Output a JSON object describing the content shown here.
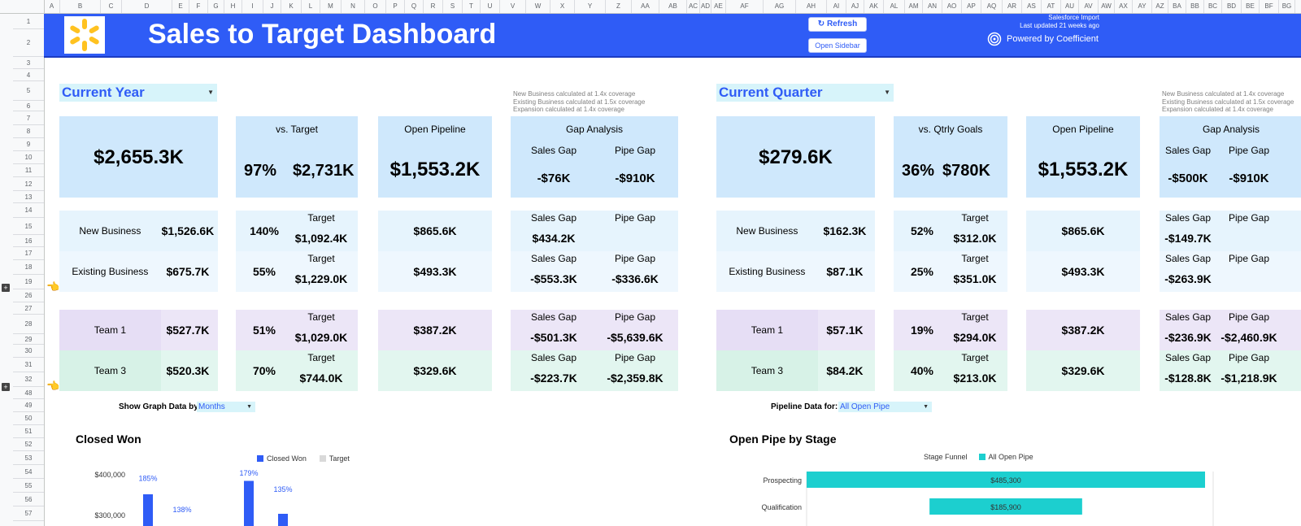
{
  "columns": [
    "A",
    "B",
    "C",
    "D",
    "E",
    "F",
    "G",
    "H",
    "I",
    "J",
    "K",
    "L",
    "M",
    "N",
    "O",
    "P",
    "Q",
    "R",
    "S",
    "T",
    "U",
    "V",
    "W",
    "X",
    "Y",
    "Z",
    "AA",
    "AB",
    "AC",
    "AD",
    "AE",
    "AF",
    "AG",
    "AH",
    "AI",
    "AJ",
    "AK",
    "AL",
    "AM",
    "AN",
    "AO",
    "AP",
    "AQ",
    "AR",
    "AS",
    "AT",
    "AU",
    "AV",
    "AW",
    "AX",
    "AY",
    "AZ",
    "BA",
    "BB",
    "BC",
    "BD",
    "BE",
    "BF",
    "BG"
  ],
  "rows": [
    "1",
    "2",
    "3",
    "4",
    "5",
    "6",
    "7",
    "8",
    "9",
    "10",
    "11",
    "12",
    "13",
    "14",
    "15",
    "16",
    "17",
    "18",
    "19",
    "26",
    "27",
    "28",
    "29",
    "30",
    "31",
    "32",
    "48",
    "49",
    "50",
    "51",
    "52",
    "53",
    "54",
    "55",
    "56",
    "57"
  ],
  "header": {
    "title": "Sales to Target Dashboard",
    "refresh_label": "Refresh",
    "open_sidebar_label": "Open Sidebar",
    "import_source": "Salesforce Import",
    "last_updated": "Last updated 21 weeks ago",
    "powered_by": "Powered by Coefficient"
  },
  "year": {
    "period_label": "Current Year",
    "notes": [
      "New Business calculated at 1.4x coverage",
      "Existing Business calculated at 1.5x coverage",
      "Expansion calculated at 1.4x coverage"
    ],
    "total": "$2,655.3K",
    "vs_label": "vs. Target",
    "vs_pct": "97%",
    "vs_value": "$2,731K",
    "pipeline_label": "Open Pipeline",
    "pipeline_value": "$1,553.2K",
    "gap_label": "Gap Analysis",
    "sales_gap_label": "Sales Gap",
    "pipe_gap_label": "Pipe Gap",
    "sales_gap": "-$76K",
    "pipe_gap": "-$910K",
    "rows": [
      {
        "name": "New Business",
        "value": "$1,526.6K",
        "pct": "140%",
        "target_label": "Target",
        "target": "$1,092.4K",
        "pipe": "$865.6K",
        "sales_gap_label": "Sales Gap",
        "pipe_gap_label": "Pipe Gap",
        "sales_gap": "$434.2K",
        "pipe_gap": ""
      },
      {
        "name": "Existing Business",
        "value": "$675.7K",
        "pct": "55%",
        "target_label": "Target",
        "target": "$1,229.0K",
        "pipe": "$493.3K",
        "sales_gap_label": "Sales Gap",
        "pipe_gap_label": "Pipe Gap",
        "sales_gap": "-$553.3K",
        "pipe_gap": "-$336.6K"
      },
      {
        "name": "Team 1",
        "value": "$527.7K",
        "pct": "51%",
        "target_label": "Target",
        "target": "$1,029.0K",
        "pipe": "$387.2K",
        "sales_gap_label": "Sales Gap",
        "pipe_gap_label": "Pipe Gap",
        "sales_gap": "-$501.3K",
        "pipe_gap": "-$5,639.6K"
      },
      {
        "name": "Team 3",
        "value": "$520.3K",
        "pct": "70%",
        "target_label": "Target",
        "target": "$744.0K",
        "pipe": "$329.6K",
        "sales_gap_label": "Sales Gap",
        "pipe_gap_label": "Pipe Gap",
        "sales_gap": "-$223.7K",
        "pipe_gap": "-$2,359.8K"
      }
    ]
  },
  "quarter": {
    "period_label": "Current Quarter",
    "notes": [
      "New Business calculated at 1.4x coverage",
      "Existing Business calculated at 1.5x coverage",
      "Expansion calculated at 1.4x coverage"
    ],
    "total": "$279.6K",
    "vs_label": "vs. Qtrly Goals",
    "vs_pct": "36%",
    "vs_value": "$780K",
    "pipeline_label": "Open Pipeline",
    "pipeline_value": "$1,553.2K",
    "gap_label": "Gap Analysis",
    "sales_gap_label": "Sales Gap",
    "pipe_gap_label": "Pipe Gap",
    "sales_gap": "-$500K",
    "pipe_gap": "-$910K",
    "rows": [
      {
        "name": "New Business",
        "value": "$162.3K",
        "pct": "52%",
        "target_label": "Target",
        "target": "$312.0K",
        "pipe": "$865.6K",
        "sales_gap_label": "Sales Gap",
        "pipe_gap_label": "Pipe Gap",
        "sales_gap": "-$149.7K",
        "pipe_gap": ""
      },
      {
        "name": "Existing Business",
        "value": "$87.1K",
        "pct": "25%",
        "target_label": "Target",
        "target": "$351.0K",
        "pipe": "$493.3K",
        "sales_gap_label": "Sales Gap",
        "pipe_gap_label": "Pipe Gap",
        "sales_gap": "-$263.9K",
        "pipe_gap": ""
      },
      {
        "name": "Team 1",
        "value": "$57.1K",
        "pct": "19%",
        "target_label": "Target",
        "target": "$294.0K",
        "pipe": "$387.2K",
        "sales_gap_label": "Sales Gap",
        "pipe_gap_label": "Pipe Gap",
        "sales_gap": "-$236.9K",
        "pipe_gap": "-$2,460.9K"
      },
      {
        "name": "Team 3",
        "value": "$84.2K",
        "pct": "40%",
        "target_label": "Target",
        "target": "$213.0K",
        "pipe": "$329.6K",
        "sales_gap_label": "Sales Gap",
        "pipe_gap_label": "Pipe Gap",
        "sales_gap": "-$128.8K",
        "pipe_gap": "-$1,218.9K"
      }
    ]
  },
  "graph_controls": {
    "show_by_label": "Show Graph Data by:",
    "show_by_value": "Months",
    "pipeline_for_label": "Pipeline Data for:",
    "pipeline_for_value": "All Open Pipe"
  },
  "colors": {
    "accent": "#2f5cf6",
    "bar_closed_won": "#2f5cf6",
    "bar_target": "#d9d9d9",
    "funnel": "#1ccfcf"
  },
  "chart_data": [
    {
      "type": "bar",
      "title": "Closed Won",
      "series": [
        {
          "name": "Closed Won",
          "pct_labels": [
            "185%",
            "138%",
            "179%",
            "135%"
          ]
        },
        {
          "name": "Target"
        }
      ],
      "yticks": [
        "$400,000",
        "$300,000"
      ],
      "ytick_values": [
        400000,
        300000
      ],
      "bar_values": [
        352000,
        0,
        385000,
        304000
      ],
      "label_values": [
        385000,
        308000,
        398000,
        358000
      ]
    },
    {
      "type": "bar",
      "orientation": "horizontal",
      "title": "Open Pipe by Stage",
      "legend_title": "Stage Funnel",
      "series": [
        {
          "name": "All Open Pipe"
        }
      ],
      "categories": [
        "Prospecting",
        "Qualification"
      ],
      "values": [
        485300,
        185900
      ],
      "value_labels": [
        "$485,300",
        "$185,900"
      ],
      "offsets": [
        0,
        149700
      ]
    }
  ]
}
